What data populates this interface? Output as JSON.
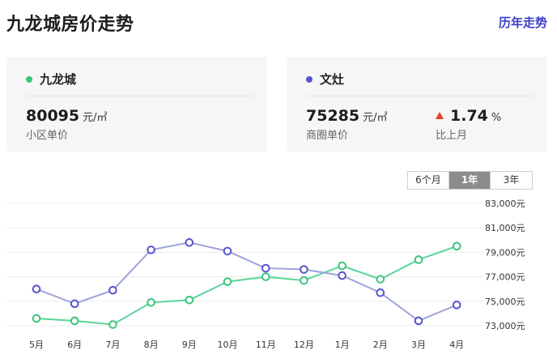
{
  "header": {
    "title": "九龙城房价走势",
    "history_link": "历年走势"
  },
  "cards": {
    "community": {
      "name": "九龙城",
      "dot_color": "#3cc47c",
      "price": "80095",
      "unit": "元/㎡",
      "sublabel": "小区单价"
    },
    "district": {
      "name": "文灶",
      "dot_color": "#5557c9",
      "price": "75285",
      "unit": "元/㎡",
      "sublabel": "商圈单价",
      "change_direction": "up",
      "change_value": "1.74",
      "change_unit": "%",
      "change_label": "比上月"
    }
  },
  "range_tabs": {
    "options": [
      "6个月",
      "1年",
      "3年"
    ],
    "selected": "1年"
  },
  "chart_data": {
    "type": "line",
    "categories": [
      "5月",
      "6月",
      "7月",
      "8月",
      "9月",
      "10月",
      "11月",
      "12月",
      "1月",
      "2月",
      "3月",
      "4月"
    ],
    "y_ticks": [
      83000,
      81000,
      79000,
      77000,
      75000,
      73000
    ],
    "y_tick_labels": [
      "83,000元",
      "81,000元",
      "79,000元",
      "77,000元",
      "75,000元",
      "73,000元"
    ],
    "ylim": [
      73000,
      83000
    ],
    "grid": true,
    "series": [
      {
        "name": "九龙城",
        "color": "#57d69a",
        "marker_color": "#3cc47c",
        "values": [
          73600,
          73400,
          73100,
          74900,
          75100,
          76600,
          77000,
          76700,
          77900,
          76800,
          78400,
          79500
        ]
      },
      {
        "name": "文灶",
        "color": "#9ea3dc",
        "marker_color": "#5557c9",
        "values": [
          76000,
          74800,
          75900,
          79200,
          79800,
          79100,
          77700,
          77600,
          77100,
          75700,
          73400,
          74700
        ]
      }
    ]
  }
}
